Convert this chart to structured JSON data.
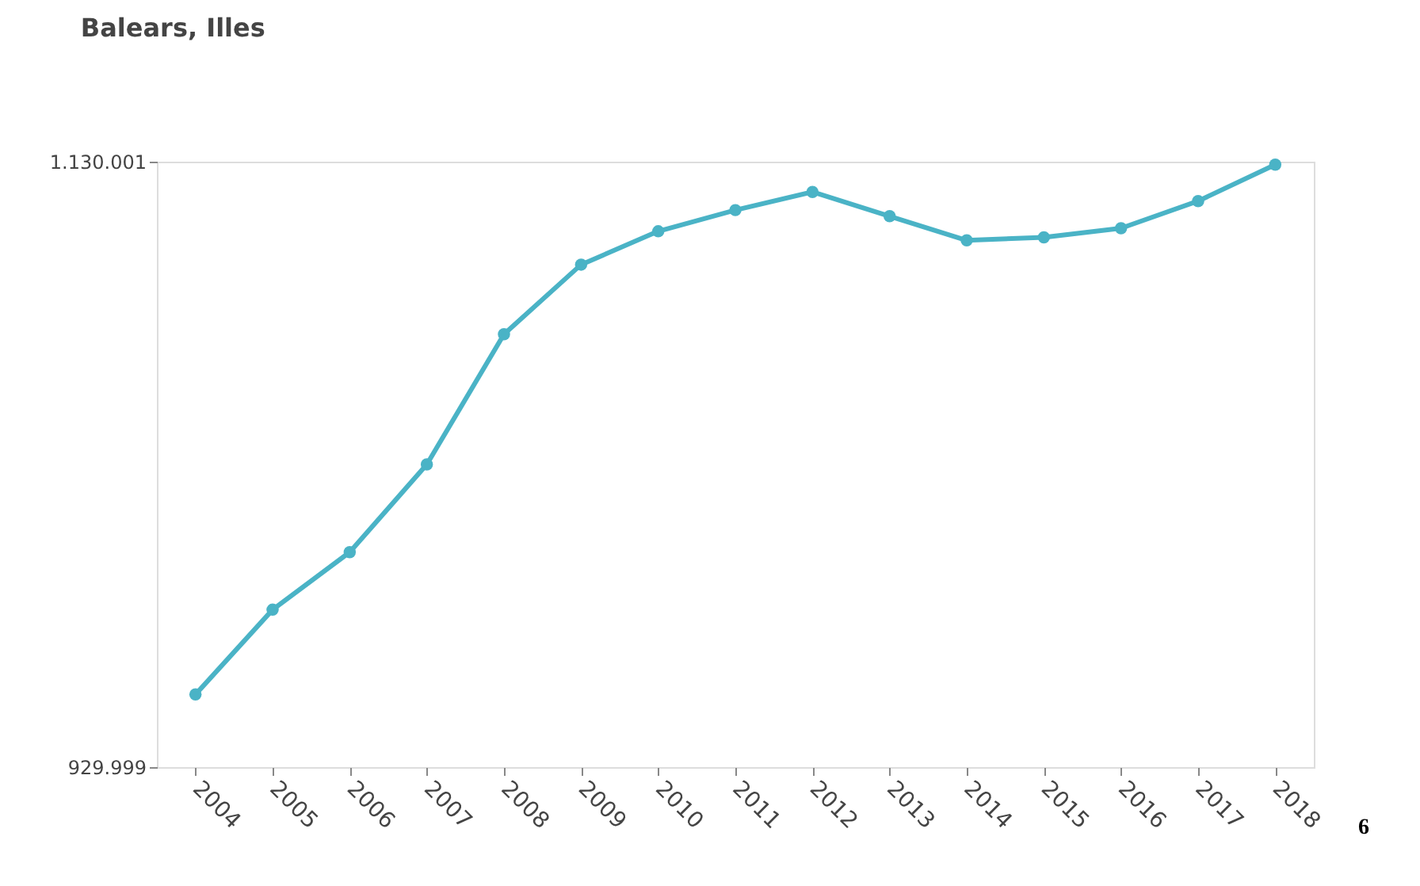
{
  "chart_data": {
    "type": "line",
    "title": "Balears, Illes",
    "categories": [
      "2004",
      "2005",
      "2006",
      "2007",
      "2008",
      "2009",
      "2010",
      "2011",
      "2012",
      "2013",
      "2014",
      "2015",
      "2016",
      "2017",
      "2018"
    ],
    "series": [
      {
        "color": "#4ab3c6",
        "values": [
          954000,
          982000,
          1001000,
          1030000,
          1073000,
          1096000,
          1107000,
          1114000,
          1120000,
          1112000,
          1104000,
          1105000,
          1108000,
          1117000,
          1129000
        ]
      }
    ],
    "ylim": [
      929999,
      1130001
    ],
    "yticks": [
      {
        "value": 929999,
        "label": "929.999"
      },
      {
        "value": 1130001,
        "label": "1.130.001"
      }
    ],
    "marker": "circle",
    "line_style": "solid",
    "grid": false,
    "annotations": [
      "6"
    ]
  }
}
